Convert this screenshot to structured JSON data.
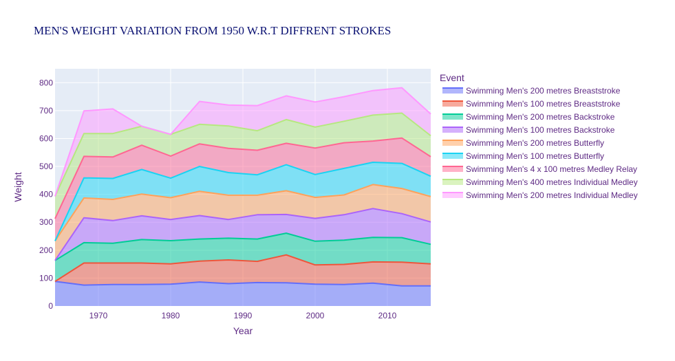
{
  "chart_data": {
    "type": "area",
    "stacked": true,
    "title": "MEN'S WEIGHT VARIATION  FROM 1950 W.R.T DIFFRENT STROKES",
    "xlabel": "Year",
    "ylabel": "Weight",
    "xlim": [
      1964,
      2016
    ],
    "ylim": [
      0,
      850
    ],
    "xticks": [
      1970,
      1980,
      1990,
      2000,
      2010
    ],
    "yticks": [
      0,
      100,
      200,
      300,
      400,
      500,
      600,
      700,
      800
    ],
    "grid": true,
    "legend_title": "Event",
    "legend_position": "right",
    "colors": {
      "title": "#0a1172",
      "axis_text": "#5e2a84",
      "plot_bg": "#e5ecf6",
      "grid": "#ffffff"
    },
    "series": [
      {
        "name": "Swimming Men's 200 metres Breaststroke",
        "color": "#636efa",
        "x": [
          1964,
          1968,
          1972,
          1976,
          1980,
          1984,
          1988,
          1992,
          1996,
          2000,
          2004,
          2008,
          2012,
          2016
        ],
        "values": [
          88,
          75,
          77,
          77,
          78,
          86,
          80,
          84,
          83,
          78,
          77,
          82,
          72,
          72
        ]
      },
      {
        "name": "Swimming Men's 100 metres Breaststroke",
        "color": "#ef553b",
        "x": [
          1964,
          1968,
          1972,
          1976,
          1980,
          1984,
          1988,
          1992,
          1996,
          2000,
          2004,
          2008,
          2012,
          2016
        ],
        "values": [
          0,
          79,
          77,
          77,
          73,
          75,
          85,
          76,
          100,
          69,
          72,
          76,
          85,
          79
        ]
      },
      {
        "name": "Swimming Men's 200 metres Backstroke",
        "color": "#00cc96",
        "x": [
          1964,
          1968,
          1972,
          1976,
          1980,
          1984,
          1988,
          1992,
          1996,
          2000,
          2004,
          2008,
          2012,
          2016
        ],
        "values": [
          75,
          73,
          71,
          84,
          83,
          79,
          78,
          80,
          78,
          85,
          87,
          88,
          88,
          70
        ]
      },
      {
        "name": "Swimming Men's 100 metres Backstroke",
        "color": "#ab63fa",
        "x": [
          1964,
          1968,
          1972,
          1976,
          1980,
          1984,
          1988,
          1992,
          1996,
          2000,
          2004,
          2008,
          2012,
          2016
        ],
        "values": [
          0,
          89,
          81,
          85,
          76,
          84,
          67,
          87,
          67,
          82,
          91,
          103,
          86,
          80
        ]
      },
      {
        "name": "Swimming Men's 200 metres Butterfly",
        "color": "#ffa15a",
        "x": [
          1964,
          1968,
          1972,
          1976,
          1980,
          1984,
          1988,
          1992,
          1996,
          2000,
          2004,
          2008,
          2012,
          2016
        ],
        "values": [
          70,
          71,
          76,
          78,
          78,
          87,
          87,
          70,
          85,
          75,
          71,
          86,
          90,
          91
        ]
      },
      {
        "name": "Swimming Men's 100 metres Butterfly",
        "color": "#19d3f3",
        "x": [
          1964,
          1968,
          1972,
          1976,
          1980,
          1984,
          1988,
          1992,
          1996,
          2000,
          2004,
          2008,
          2012,
          2016
        ],
        "values": [
          0,
          72,
          75,
          88,
          70,
          89,
          81,
          73,
          93,
          82,
          95,
          80,
          90,
          73
        ]
      },
      {
        "name": "Swimming Men's 4 x 100 metres Medley Relay",
        "color": "#ff6692",
        "x": [
          1964,
          1968,
          1972,
          1976,
          1980,
          1984,
          1988,
          1992,
          1996,
          2000,
          2004,
          2008,
          2012,
          2016
        ],
        "values": [
          80,
          77,
          77,
          87,
          79,
          81,
          87,
          88,
          77,
          95,
          92,
          76,
          91,
          70
        ]
      },
      {
        "name": "Swimming Men's 400 metres Individual Medley",
        "color": "#b6e880",
        "x": [
          1964,
          1968,
          1972,
          1976,
          1980,
          1984,
          1988,
          1992,
          1996,
          2000,
          2004,
          2008,
          2012,
          2016
        ],
        "values": [
          80,
          82,
          84,
          68,
          78,
          70,
          80,
          70,
          85,
          75,
          77,
          93,
          89,
          75
        ]
      },
      {
        "name": "Swimming Men's 200 metres Individual Medley",
        "color": "#ff97ff",
        "x": [
          1964,
          1968,
          1972,
          1976,
          1980,
          1984,
          1988,
          1992,
          1996,
          2000,
          2004,
          2008,
          2012,
          2016
        ],
        "values": [
          0,
          81,
          88,
          0,
          0,
          82,
          75,
          90,
          85,
          90,
          88,
          88,
          91,
          78
        ]
      }
    ]
  }
}
